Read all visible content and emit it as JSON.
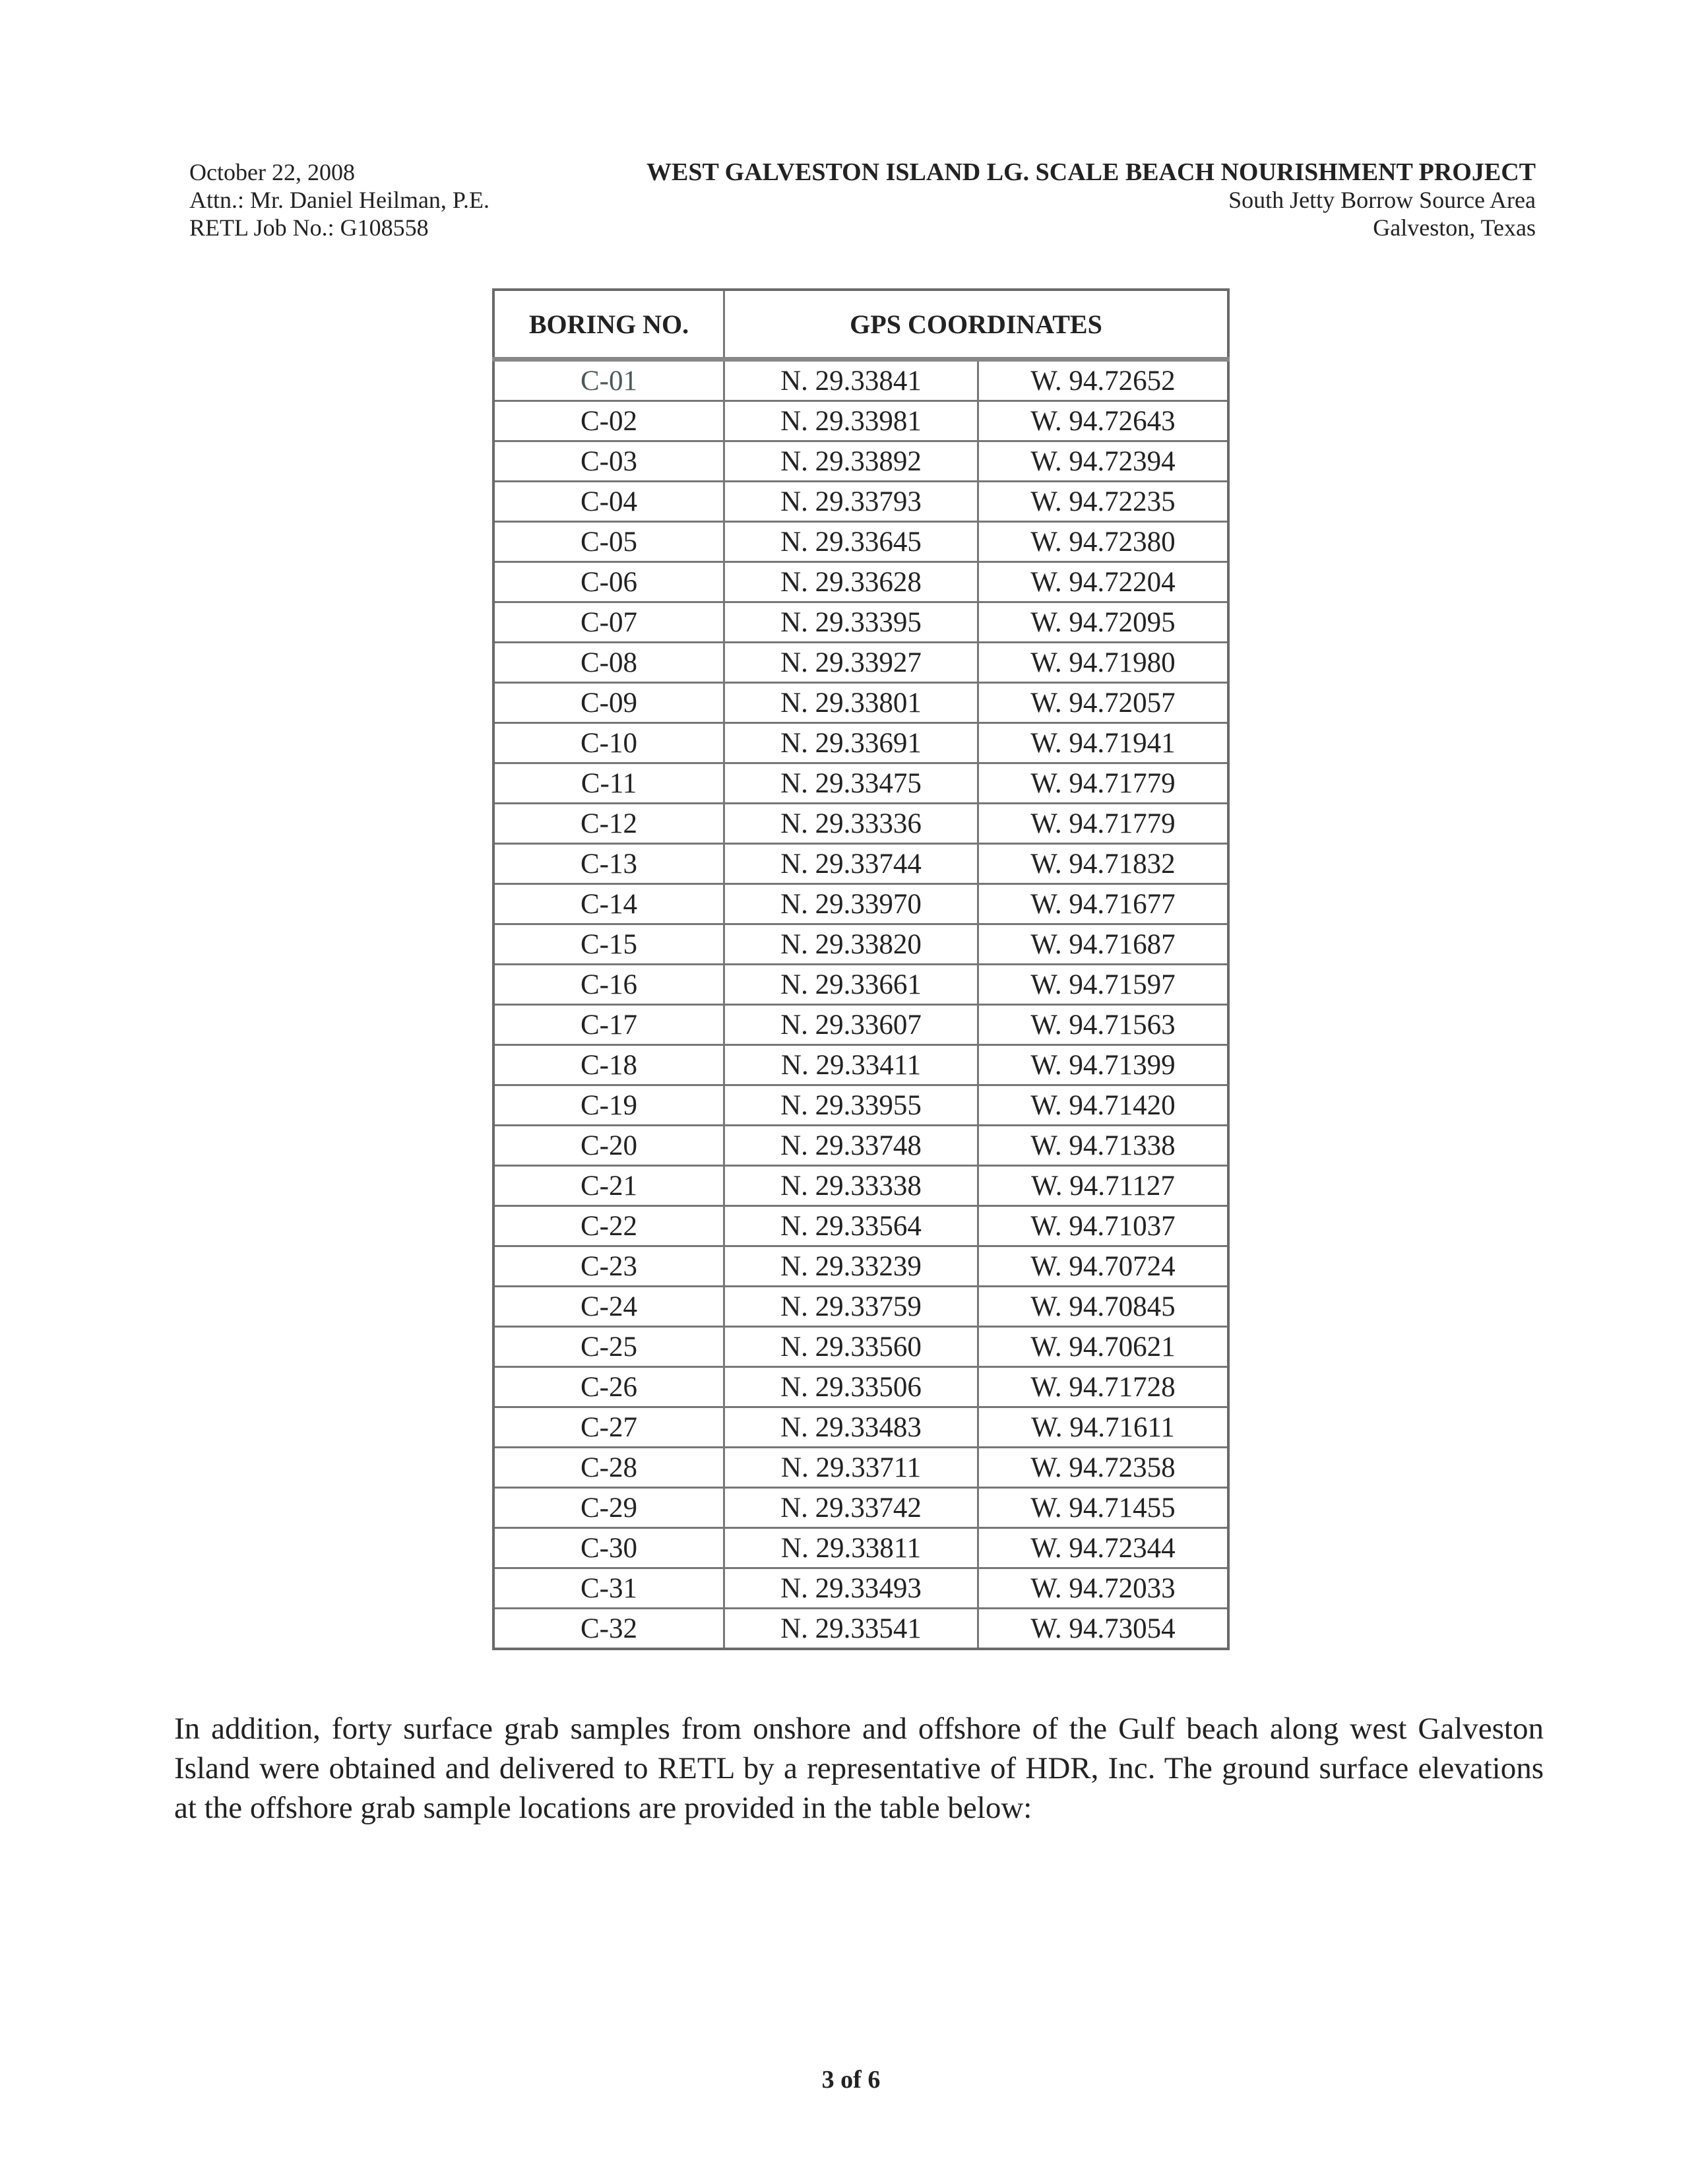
{
  "header": {
    "date": "October 22, 2008",
    "attn": "Attn.: Mr. Daniel Heilman, P.E.",
    "job": "RETL Job No.: G108558",
    "title": "WEST GALVESTON ISLAND LG. SCALE BEACH NOURISHMENT PROJECT",
    "subtitle": "South Jetty Borrow Source Area",
    "location": "Galveston, Texas"
  },
  "table": {
    "headers": [
      "BORING NO.",
      "GPS COORDINATES"
    ],
    "rows": [
      [
        "C-01",
        "N. 29.33841",
        "W. 94.72652"
      ],
      [
        "C-02",
        "N. 29.33981",
        "W. 94.72643"
      ],
      [
        "C-03",
        "N. 29.33892",
        "W. 94.72394"
      ],
      [
        "C-04",
        "N. 29.33793",
        "W. 94.72235"
      ],
      [
        "C-05",
        "N. 29.33645",
        "W. 94.72380"
      ],
      [
        "C-06",
        "N. 29.33628",
        "W. 94.72204"
      ],
      [
        "C-07",
        "N. 29.33395",
        "W. 94.72095"
      ],
      [
        "C-08",
        "N. 29.33927",
        "W. 94.71980"
      ],
      [
        "C-09",
        "N. 29.33801",
        "W. 94.72057"
      ],
      [
        "C-10",
        "N. 29.33691",
        "W. 94.71941"
      ],
      [
        "C-11",
        "N. 29.33475",
        "W. 94.71779"
      ],
      [
        "C-12",
        "N. 29.33336",
        "W. 94.71779"
      ],
      [
        "C-13",
        "N. 29.33744",
        "W. 94.71832"
      ],
      [
        "C-14",
        "N. 29.33970",
        "W. 94.71677"
      ],
      [
        "C-15",
        "N. 29.33820",
        "W. 94.71687"
      ],
      [
        "C-16",
        "N. 29.33661",
        "W. 94.71597"
      ],
      [
        "C-17",
        "N. 29.33607",
        "W. 94.71563"
      ],
      [
        "C-18",
        "N. 29.33411",
        "W. 94.71399"
      ],
      [
        "C-19",
        "N. 29.33955",
        "W. 94.71420"
      ],
      [
        "C-20",
        "N. 29.33748",
        "W. 94.71338"
      ],
      [
        "C-21",
        "N. 29.33338",
        "W. 94.71127"
      ],
      [
        "C-22",
        "N. 29.33564",
        "W. 94.71037"
      ],
      [
        "C-23",
        "N. 29.33239",
        "W. 94.70724"
      ],
      [
        "C-24",
        "N. 29.33759",
        "W. 94.70845"
      ],
      [
        "C-25",
        "N. 29.33560",
        "W. 94.70621"
      ],
      [
        "C-26",
        "N. 29.33506",
        "W. 94.71728"
      ],
      [
        "C-27",
        "N. 29.33483",
        "W. 94.71611"
      ],
      [
        "C-28",
        "N. 29.33711",
        "W. 94.72358"
      ],
      [
        "C-29",
        "N. 29.33742",
        "W. 94.71455"
      ],
      [
        "C-30",
        "N. 29.33811",
        "W. 94.72344"
      ],
      [
        "C-31",
        "N. 29.33493",
        "W. 94.72033"
      ],
      [
        "C-32",
        "N. 29.33541",
        "W. 94.73054"
      ]
    ]
  },
  "paragraph": "In addition, forty surface grab samples from onshore and offshore of the Gulf beach along west Galveston Island were obtained and delivered to RETL by a representative of HDR, Inc. The ground surface elevations at the offshore grab sample locations are provided in the table below:",
  "footer": {
    "page": "3 of 6"
  }
}
